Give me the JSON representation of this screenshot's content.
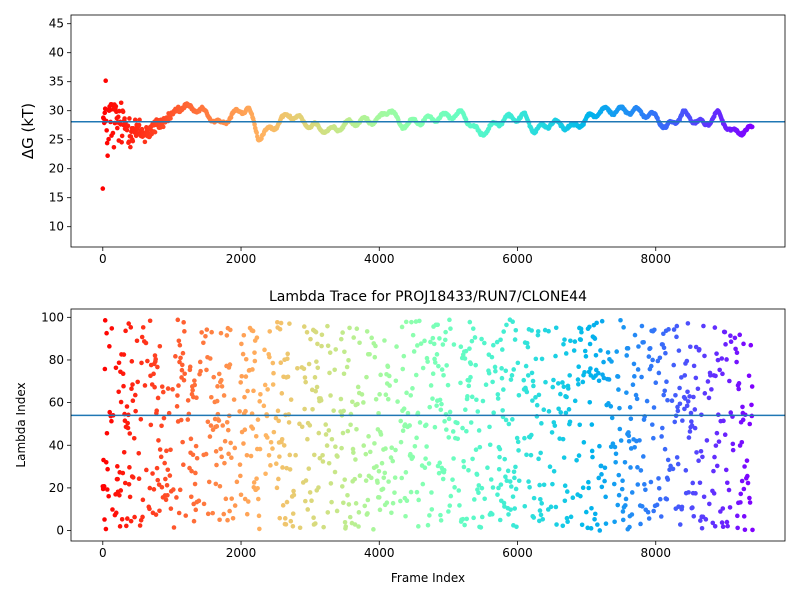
{
  "chart_data": [
    {
      "type": "scatter",
      "title": "",
      "xlabel": "",
      "ylabel": "ΔG (kT)",
      "xlim": [
        -460,
        9870
      ],
      "ylim": [
        6.5,
        46.5
      ],
      "xticks": [
        0,
        2000,
        4000,
        6000,
        8000
      ],
      "yticks": [
        10,
        15,
        20,
        25,
        30,
        35,
        40,
        45
      ],
      "colormap": "rainbow (red at frame 0 to purple at last frame)",
      "frame_range": [
        0,
        9400
      ],
      "reference_line": {
        "y": 28.1,
        "color": "#1f77b4"
      },
      "trace_profile": [
        {
          "x": 0,
          "y": 27,
          "spread": 17
        },
        {
          "x": 100,
          "y": 28,
          "spread": 9
        },
        {
          "x": 300,
          "y": 27.5,
          "spread": 5
        },
        {
          "x": 600,
          "y": 26,
          "spread": 3
        },
        {
          "x": 900,
          "y": 28.3,
          "spread": 1.5
        },
        {
          "x": 1100,
          "y": 30.5,
          "spread": 0.4
        },
        {
          "x": 1300,
          "y": 30.5,
          "spread": 0.4
        },
        {
          "x": 1500,
          "y": 29.5,
          "spread": 0.3
        },
        {
          "x": 1700,
          "y": 27.5,
          "spread": 0.3
        },
        {
          "x": 1900,
          "y": 29.5,
          "spread": 0.3
        },
        {
          "x": 2100,
          "y": 30.5,
          "spread": 0.3
        },
        {
          "x": 2250,
          "y": 25.5,
          "spread": 0.3
        },
        {
          "x": 2450,
          "y": 27,
          "spread": 0.3
        },
        {
          "x": 2700,
          "y": 29.5,
          "spread": 0.3
        },
        {
          "x": 3000,
          "y": 27.5,
          "spread": 0.3
        },
        {
          "x": 3300,
          "y": 26.5,
          "spread": 0.3
        },
        {
          "x": 3600,
          "y": 28,
          "spread": 0.3
        },
        {
          "x": 4000,
          "y": 28.5,
          "spread": 0.3
        },
        {
          "x": 4150,
          "y": 30.5,
          "spread": 0.3
        },
        {
          "x": 4300,
          "y": 27.5,
          "spread": 0.3
        },
        {
          "x": 4700,
          "y": 28.5,
          "spread": 0.3
        },
        {
          "x": 5200,
          "y": 29.5,
          "spread": 0.3
        },
        {
          "x": 5450,
          "y": 26,
          "spread": 0.3
        },
        {
          "x": 5800,
          "y": 28.5,
          "spread": 0.3
        },
        {
          "x": 6100,
          "y": 29,
          "spread": 0.3
        },
        {
          "x": 6250,
          "y": 26.5,
          "spread": 0.3
        },
        {
          "x": 6500,
          "y": 28,
          "spread": 0.3
        },
        {
          "x": 6800,
          "y": 27,
          "spread": 0.3
        },
        {
          "x": 7200,
          "y": 30,
          "spread": 0.3
        },
        {
          "x": 7700,
          "y": 30,
          "spread": 0.3
        },
        {
          "x": 8000,
          "y": 29,
          "spread": 0.3
        },
        {
          "x": 8150,
          "y": 27,
          "spread": 0.3
        },
        {
          "x": 8400,
          "y": 29.5,
          "spread": 0.3
        },
        {
          "x": 8700,
          "y": 27.5,
          "spread": 0.3
        },
        {
          "x": 8900,
          "y": 29.5,
          "spread": 0.3
        },
        {
          "x": 9100,
          "y": 26.2,
          "spread": 0.3
        },
        {
          "x": 9400,
          "y": 26.8,
          "spread": 0.3
        }
      ]
    },
    {
      "type": "scatter",
      "title": "Lambda Trace for PROJ18433/RUN7/CLONE44",
      "xlabel": "Frame Index",
      "ylabel": "Lambda Index",
      "xlim": [
        -460,
        9870
      ],
      "ylim": [
        -4.9,
        103.9
      ],
      "xticks": [
        0,
        2000,
        4000,
        6000,
        8000
      ],
      "yticks": [
        0,
        20,
        40,
        60,
        80,
        100
      ],
      "colormap": "rainbow (red at frame 0 to purple at last frame)",
      "frame_range": [
        0,
        9400
      ],
      "lambda_range": [
        0,
        99
      ],
      "reference_line": {
        "y": 54,
        "color": "#1f77b4"
      },
      "distribution": "points spread across the full lambda range 0-99 for every frame, with vertical bands of denser coverage"
    }
  ]
}
